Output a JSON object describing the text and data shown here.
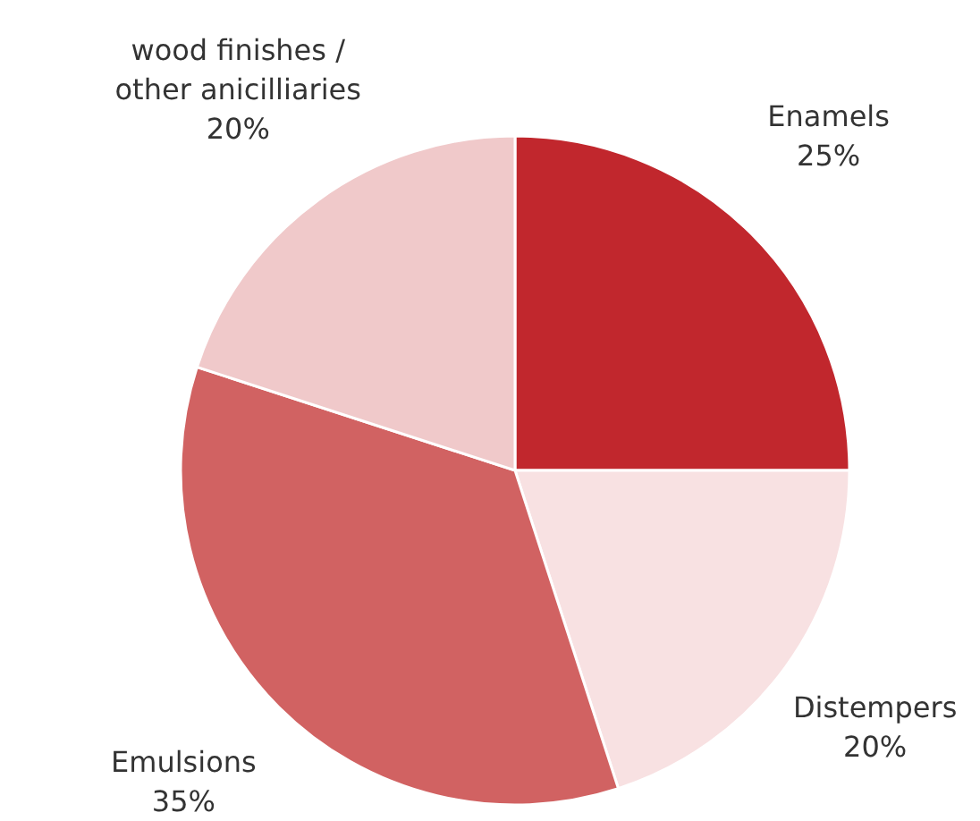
{
  "chart_data": {
    "type": "pie",
    "categories": [
      "Enamels",
      "Distempers",
      "Emulsions",
      "wood finishes / other anicilliaries"
    ],
    "values": [
      25,
      20,
      35,
      20
    ],
    "value_labels": [
      "25%",
      "20%",
      "35%",
      "20%"
    ],
    "colors": [
      "#c1272d",
      "#f8e1e2",
      "#d16262",
      "#f0c9ca"
    ]
  }
}
